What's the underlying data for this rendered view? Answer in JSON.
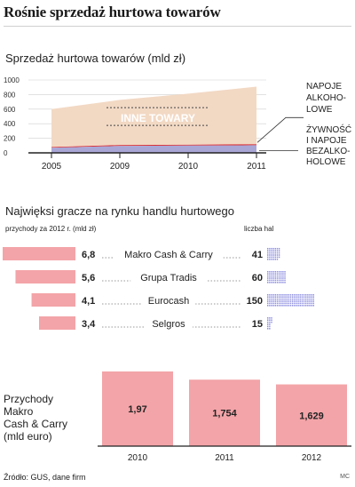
{
  "title": "Rośnie sprzedaż hurtowa towarów",
  "chart1": {
    "subtitle": "Sprzedaż hurtowa towarów (mld zł)",
    "center_label": "INNE TOWARY",
    "label_napoje": [
      "NAPOJE",
      "ALKOHO-",
      "LOWE"
    ],
    "label_zywnosc": [
      "ŻYWNOŚĆ",
      "I NAPOJE",
      "BEZALKO-",
      "HOLOWE"
    ]
  },
  "chart2": {
    "subtitle": "Najwięksi gracze na rynku handlu hurtowego",
    "col_left": "przychody za 2012 r. (mld zł)",
    "col_right": "liczba hal"
  },
  "chart3": {
    "label_lines": [
      "Przychody",
      "Makro",
      "Cash & Carry",
      "(mld euro)"
    ]
  },
  "source": "Źródło: GUS, dane firm",
  "credit": "MC",
  "colors": {
    "inne": "#f2d9c4",
    "napoje": "#d8252b",
    "zywnosc": "#a9a6d6",
    "bar_pink": "#f3a4a8",
    "hal_blue": "#8f8fe0",
    "axis": "#222222",
    "grid": "#6e6e6e"
  },
  "chart_data": [
    {
      "type": "area",
      "x": [
        "2005",
        "2009",
        "2010",
        "2011"
      ],
      "series": [
        {
          "name": "ŻYWNOŚĆ I NAPOJE BEZALKOHOLOWE",
          "values": [
            70,
            95,
            100,
            105
          ]
        },
        {
          "name": "NAPOJE ALKOHOLOWE",
          "values": [
            10,
            12,
            12,
            13
          ]
        },
        {
          "name": "INNE TOWARY",
          "values": [
            520,
            620,
            700,
            790
          ]
        }
      ],
      "yticks": [
        0,
        200,
        400,
        600,
        800,
        1000
      ],
      "ylim": [
        0,
        1000
      ]
    },
    {
      "type": "bar",
      "categories": [
        "Makro Cash & Carry",
        "Grupa Tradis",
        "Eurocash",
        "Selgros"
      ],
      "series": [
        {
          "values": [
            6.8,
            5.6,
            4.1,
            3.4
          ],
          "labels": [
            "6,8",
            "5,6",
            "4,1",
            "3,4"
          ]
        },
        {
          "values": [
            41,
            60,
            150,
            15
          ]
        }
      ]
    },
    {
      "type": "bar",
      "categories": [
        "2010",
        "2011",
        "2012"
      ],
      "values": [
        1.97,
        1.754,
        1.629
      ],
      "labels": [
        "1,97",
        "1,754",
        "1,629"
      ]
    }
  ]
}
